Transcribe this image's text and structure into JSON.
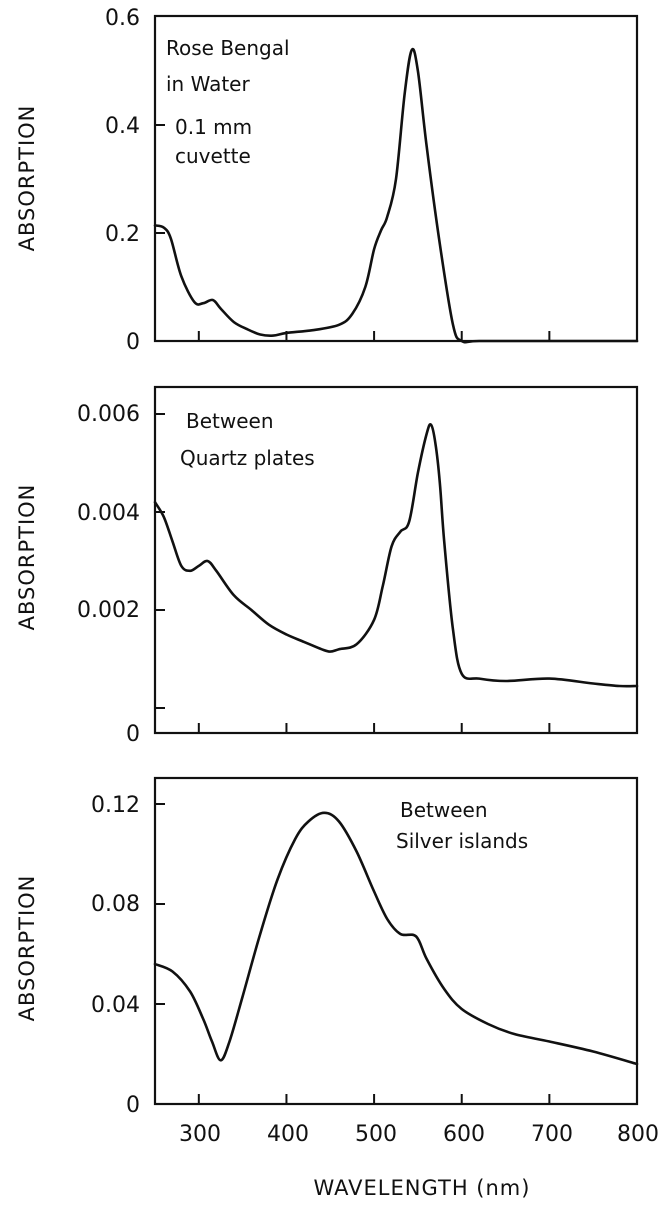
{
  "figure": {
    "x_axis_title": "WAVELENGTH (nm)",
    "x_ticks": [
      "300",
      "400",
      "500",
      "600",
      "700",
      "800"
    ]
  },
  "panels": [
    {
      "ylabel": "ABSORPTION",
      "y_ticks": [
        "0",
        "0.2",
        "0.4",
        "0.6"
      ],
      "annotation": [
        "Rose Bengal",
        "in Water",
        "0.1 mm",
        "cuvette"
      ]
    },
    {
      "ylabel": "ABSORPTION",
      "y_ticks": [
        "0",
        "0.002",
        "0.004",
        "0.006"
      ],
      "annotation": [
        "Between",
        "Quartz plates"
      ]
    },
    {
      "ylabel": "ABSORPTION",
      "y_ticks": [
        "0",
        "0.04",
        "0.08",
        "0.12"
      ],
      "annotation": [
        "Between",
        "Silver islands"
      ]
    }
  ],
  "chart_data": [
    {
      "type": "line",
      "title": "Rose Bengal in Water, 0.1 mm cuvette",
      "xlabel": "WAVELENGTH (nm)",
      "ylabel": "ABSORPTION",
      "xlim": [
        250,
        800
      ],
      "ylim": [
        0,
        0.6
      ],
      "x_ticks": [
        300,
        400,
        500,
        600,
        700,
        800
      ],
      "y_ticks": [
        0,
        0.2,
        0.4,
        0.6
      ],
      "grid": false,
      "annotations": [
        "Rose Bengal",
        "in Water",
        "0.1 mm",
        "cuvette"
      ],
      "x": [
        250,
        260,
        268,
        280,
        295,
        305,
        316,
        325,
        340,
        355,
        370,
        385,
        400,
        430,
        460,
        475,
        490,
        500,
        508,
        515,
        525,
        535,
        543,
        550,
        560,
        575,
        590,
        600,
        620,
        700,
        800
      ],
      "values": [
        0.214,
        0.21,
        0.19,
        0.12,
        0.072,
        0.07,
        0.076,
        0.06,
        0.035,
        0.022,
        0.012,
        0.01,
        0.015,
        0.02,
        0.03,
        0.05,
        0.1,
        0.17,
        0.205,
        0.23,
        0.3,
        0.46,
        0.539,
        0.5,
        0.36,
        0.18,
        0.03,
        0.0,
        0.0,
        0.0,
        0.0
      ]
    },
    {
      "type": "line",
      "title": "Between Quartz plates",
      "xlabel": "WAVELENGTH (nm)",
      "ylabel": "ABSORPTION",
      "xlim": [
        250,
        800
      ],
      "ylim": [
        0,
        0.0065
      ],
      "x_ticks": [
        300,
        400,
        500,
        600,
        700,
        800
      ],
      "y_ticks": [
        0,
        0.002,
        0.004,
        0.006
      ],
      "grid": false,
      "annotations": [
        "Between",
        "Quartz plates"
      ],
      "x": [
        250,
        260,
        270,
        280,
        290,
        300,
        310,
        320,
        340,
        360,
        380,
        400,
        420,
        440,
        450,
        460,
        480,
        500,
        510,
        520,
        530,
        540,
        550,
        560,
        565,
        570,
        575,
        580,
        590,
        600,
        620,
        650,
        700,
        750,
        780,
        800
      ],
      "values": [
        0.0042,
        0.0039,
        0.0034,
        0.0029,
        0.0028,
        0.0029,
        0.003,
        0.0028,
        0.0023,
        0.002,
        0.0017,
        0.0015,
        0.00135,
        0.0012,
        0.00115,
        0.0012,
        0.0013,
        0.0018,
        0.0025,
        0.0033,
        0.0036,
        0.0038,
        0.0048,
        0.0056,
        0.00578,
        0.0054,
        0.0046,
        0.0034,
        0.0016,
        0.0007,
        0.0006,
        0.00055,
        0.0006,
        0.0005,
        0.00045,
        0.00045
      ]
    },
    {
      "type": "line",
      "title": "Between Silver islands",
      "xlabel": "WAVELENGTH (nm)",
      "ylabel": "ABSORPTION",
      "xlim": [
        250,
        800
      ],
      "ylim": [
        0,
        0.13
      ],
      "x_ticks": [
        300,
        400,
        500,
        600,
        700,
        800
      ],
      "y_ticks": [
        0,
        0.04,
        0.08,
        0.12
      ],
      "grid": false,
      "annotations": [
        "Between",
        "Silver islands"
      ],
      "x": [
        250,
        270,
        290,
        305,
        315,
        325,
        335,
        350,
        370,
        390,
        410,
        425,
        443,
        460,
        480,
        500,
        515,
        530,
        548,
        560,
        580,
        600,
        630,
        660,
        700,
        750,
        800
      ],
      "values": [
        0.056,
        0.053,
        0.045,
        0.034,
        0.025,
        0.0175,
        0.025,
        0.043,
        0.068,
        0.09,
        0.106,
        0.113,
        0.1165,
        0.113,
        0.101,
        0.085,
        0.074,
        0.068,
        0.067,
        0.058,
        0.046,
        0.038,
        0.032,
        0.028,
        0.025,
        0.021,
        0.016
      ]
    }
  ]
}
